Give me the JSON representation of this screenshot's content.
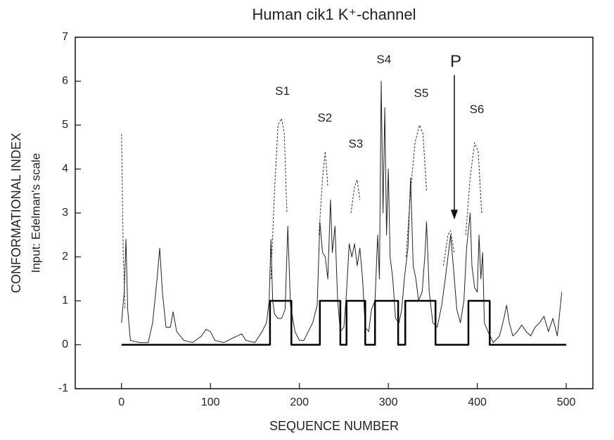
{
  "chart_data": {
    "type": "line",
    "title": "Human cik1 K⁺-channel",
    "x_label": "SEQUENCE  NUMBER",
    "y_label": [
      "CONFORMATIONAL  INDEX",
      "Input: Edelman's scale"
    ],
    "xlim": [
      -52,
      530
    ],
    "ylim": [
      -1,
      7
    ],
    "xticks": [
      0,
      100,
      200,
      300,
      400,
      500
    ],
    "yticks": [
      -1,
      0,
      1,
      2,
      3,
      4,
      5,
      6,
      7
    ],
    "series": [
      {
        "color": "#222222",
        "dashed": false,
        "width": 1,
        "x": [
          0,
          3,
          5,
          7,
          10,
          20,
          30,
          35,
          40,
          43,
          46,
          50,
          55,
          58,
          62,
          70,
          80,
          90,
          95,
          100,
          105,
          115,
          125,
          135,
          140,
          150,
          158,
          163,
          166,
          168,
          170,
          172,
          176,
          180,
          184,
          187,
          190,
          195,
          200,
          205,
          210,
          215,
          220,
          223,
          226,
          229,
          232,
          235,
          237,
          240,
          243,
          246,
          250,
          253,
          256,
          259,
          262,
          265,
          268,
          271,
          274,
          278,
          281,
          285,
          288,
          290,
          292,
          294,
          296,
          298,
          300,
          302,
          305,
          308,
          312,
          315,
          318,
          322,
          325,
          328,
          331,
          334,
          338,
          341,
          343,
          346,
          350,
          355,
          360,
          364,
          367,
          370,
          373,
          377,
          381,
          385,
          388,
          390,
          392,
          394,
          397,
          400,
          402,
          404,
          406,
          408,
          412,
          418,
          425,
          430,
          433,
          436,
          440,
          445,
          450,
          455,
          460,
          465,
          470,
          475,
          480,
          485,
          490,
          493,
          495
        ],
        "values": [
          0.5,
          1.2,
          2.4,
          0.8,
          0.1,
          0.05,
          0.05,
          0.5,
          1.5,
          2.2,
          1.2,
          0.4,
          0.4,
          0.75,
          0.3,
          0.1,
          0.05,
          0.2,
          0.35,
          0.3,
          0.1,
          0.05,
          0.15,
          0.25,
          0.1,
          0.05,
          0.3,
          0.5,
          1.0,
          2.4,
          1.0,
          0.7,
          0.6,
          0.6,
          0.8,
          2.7,
          0.9,
          0.3,
          0.1,
          0.1,
          0.3,
          0.5,
          0.9,
          2.8,
          2.1,
          2.0,
          1.5,
          3.3,
          2.1,
          2.7,
          1.0,
          0.3,
          0.4,
          1.2,
          2.3,
          2.0,
          2.3,
          1.8,
          2.2,
          1.5,
          0.4,
          0.3,
          0.8,
          1.0,
          2.5,
          1.5,
          6.0,
          3.0,
          5.4,
          2.5,
          4.0,
          2.0,
          1.5,
          0.6,
          0.5,
          0.8,
          1.5,
          2.2,
          3.8,
          1.8,
          1.5,
          1.0,
          1.2,
          2.0,
          2.8,
          1.2,
          0.5,
          0.4,
          0.9,
          1.5,
          2.0,
          2.5,
          1.8,
          0.8,
          0.5,
          1.0,
          2.2,
          2.6,
          3.0,
          1.8,
          1.3,
          1.2,
          2.5,
          1.5,
          2.1,
          0.5,
          0.3,
          0.05,
          0.2,
          0.6,
          0.9,
          0.5,
          0.2,
          0.3,
          0.45,
          0.3,
          0.2,
          0.4,
          0.5,
          0.65,
          0.3,
          0.6,
          0.2,
          0.8,
          1.2
        ]
      },
      {
        "color": "#333333",
        "dashed": true,
        "width": 1,
        "x": [
          0,
          2,
          4,
          100,
          168,
          172,
          176,
          180,
          183,
          186,
          200,
          222,
          226,
          229,
          232,
          245,
          258,
          262,
          265,
          268,
          300,
          320,
          325,
          330,
          335,
          339,
          343,
          350,
          362,
          367,
          370,
          374,
          380,
          387,
          392,
          397,
          401,
          405
        ],
        "values": [
          4.8,
          2.0,
          0.8,
          null,
          1.5,
          3.5,
          5.0,
          5.15,
          4.8,
          3.0,
          null,
          2.5,
          3.8,
          4.4,
          3.6,
          null,
          3.0,
          3.6,
          3.75,
          3.3,
          null,
          2.0,
          3.5,
          4.6,
          5.0,
          4.8,
          3.5,
          null,
          1.8,
          2.5,
          2.6,
          2.1,
          null,
          2.5,
          3.8,
          4.6,
          4.4,
          3.0
        ]
      },
      {
        "color": "#000000",
        "dashed": false,
        "width": 2.5,
        "x": [
          0,
          167,
          167,
          191,
          191,
          223,
          223,
          246,
          246,
          253,
          253,
          274,
          274,
          285,
          285,
          311,
          311,
          319,
          319,
          353,
          353,
          390,
          390,
          414,
          414,
          500
        ],
        "values": [
          0,
          0,
          1,
          1,
          0,
          0,
          1,
          1,
          0,
          0,
          1,
          1,
          0,
          0,
          1,
          1,
          0,
          0,
          1,
          1,
          0,
          0,
          1,
          1,
          0,
          0
        ]
      }
    ],
    "annotations": [
      {
        "text": "S1",
        "x": 181,
        "y": 5.76
      },
      {
        "text": "S2",
        "x": 228.6,
        "y": 5.15
      },
      {
        "text": "S3",
        "x": 263.4,
        "y": 4.56
      },
      {
        "text": "S4",
        "x": 295,
        "y": 6.48
      },
      {
        "text": "S5",
        "x": 337,
        "y": 5.71
      },
      {
        "text": "S6",
        "x": 399.5,
        "y": 5.34
      },
      {
        "text": "P",
        "x": 375.8,
        "y": 6.43,
        "arrow_to": 2.85
      }
    ]
  }
}
